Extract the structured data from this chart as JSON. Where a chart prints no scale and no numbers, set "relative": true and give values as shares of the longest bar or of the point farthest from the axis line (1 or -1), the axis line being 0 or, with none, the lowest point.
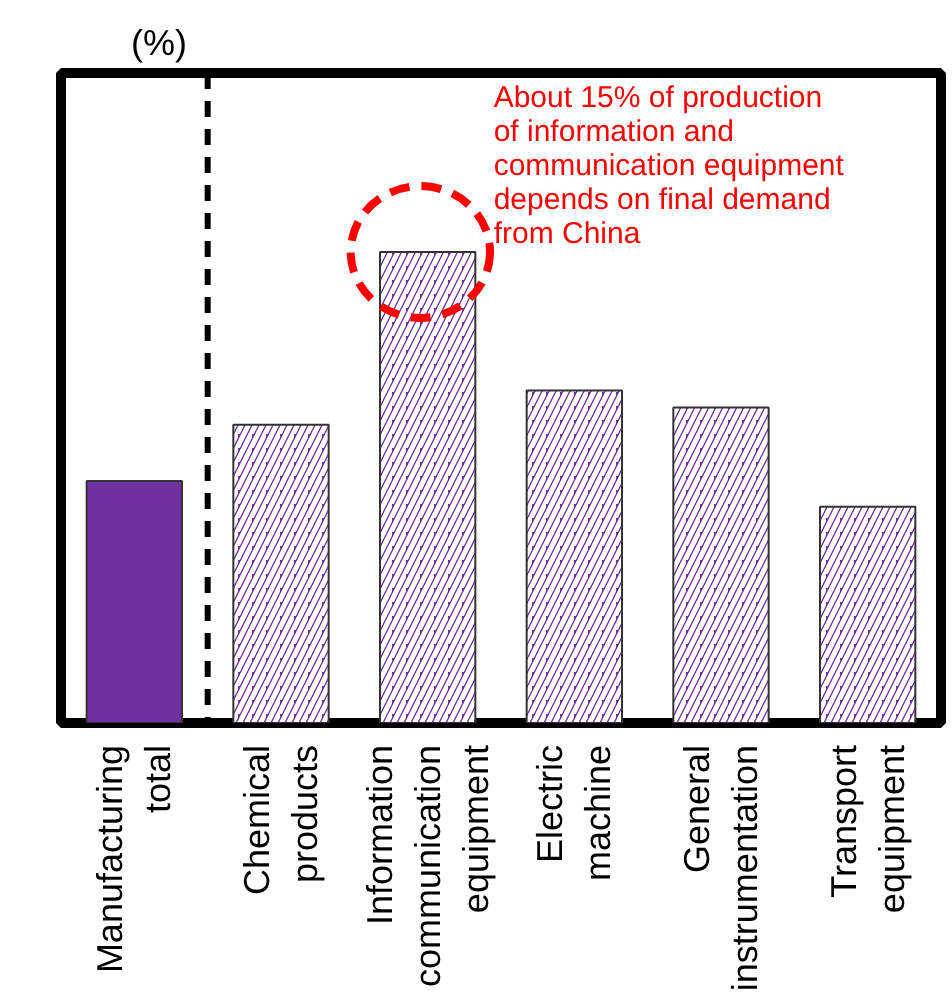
{
  "chart_data": {
    "type": "bar",
    "relative": true,
    "categories": [
      "Manufacturing total",
      "Chemical products",
      "Information communication equipment",
      "Electric machine",
      "General instrumentation",
      "Transport equipment"
    ],
    "values": [
      0.514,
      0.633,
      1,
      0.706,
      0.67,
      0.459
    ],
    "colors": [
      "#7030a0",
      "#7030a0",
      "#7030a0",
      "#7030a0",
      "#7030a0",
      "#7030a0"
    ],
    "annotations": [
      "(%)",
      "About 15% of production of information and communication equipment depends on final demand from China"
    ],
    "grid": false
  }
}
